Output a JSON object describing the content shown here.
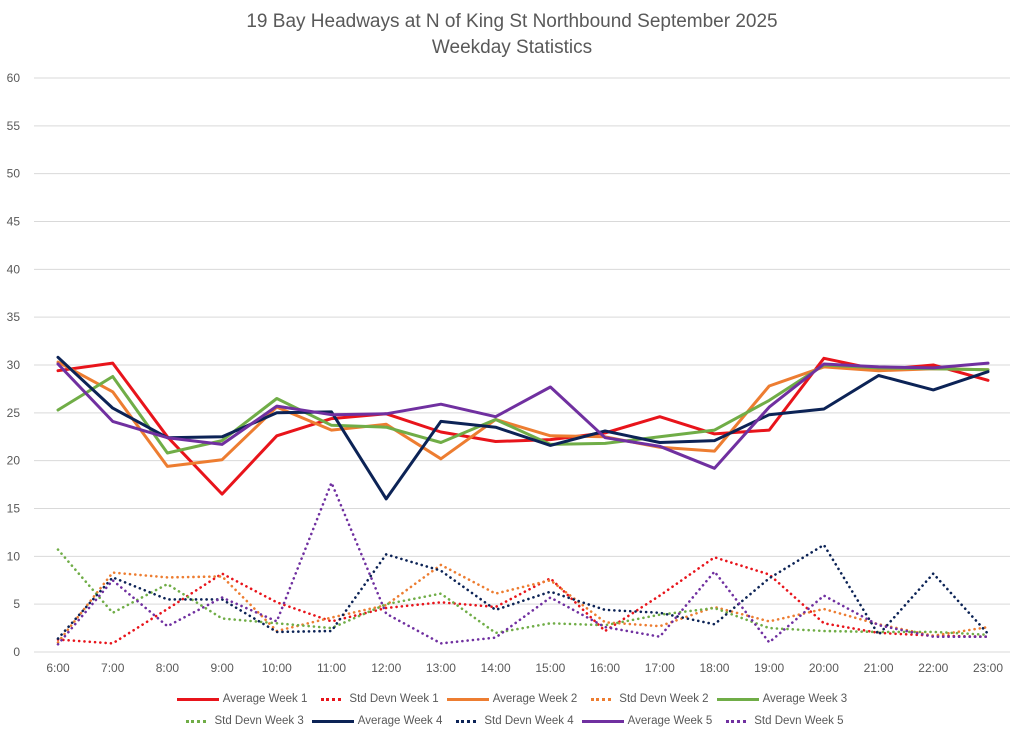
{
  "chart_data": {
    "type": "line",
    "title": "19 Bay Headways at N of King St Northbound September 2025",
    "subtitle": "Weekday Statistics",
    "xlabel": "",
    "ylabel": "",
    "ylim": [
      0,
      60
    ],
    "yticks": [
      "0",
      "5",
      "10",
      "15",
      "20",
      "25",
      "30",
      "35",
      "40",
      "45",
      "50",
      "55",
      "60"
    ],
    "ytick_values": [
      0,
      5,
      10,
      15,
      20,
      25,
      30,
      35,
      40,
      45,
      50,
      55,
      60
    ],
    "grid": true,
    "legend_position": "bottom",
    "categories": [
      "6:00",
      "7:00",
      "8:00",
      "9:00",
      "10:00",
      "11:00",
      "12:00",
      "13:00",
      "14:00",
      "15:00",
      "16:00",
      "17:00",
      "18:00",
      "19:00",
      "20:00",
      "21:00",
      "22:00",
      "23:00"
    ],
    "series": [
      {
        "name": "Average Week 1",
        "color": "#e8141b",
        "style": "solid",
        "values": [
          29.4,
          30.2,
          22.5,
          16.5,
          22.6,
          24.4,
          24.9,
          23.0,
          22.0,
          22.2,
          22.9,
          24.6,
          22.8,
          23.2,
          30.7,
          29.5,
          30.0,
          28.4
        ]
      },
      {
        "name": "Std Devn Week 1",
        "color": "#e8141b",
        "style": "dotted",
        "values": [
          1.3,
          0.9,
          4.5,
          8.2,
          5.2,
          3.2,
          4.6,
          5.2,
          4.7,
          7.7,
          2.2,
          5.9,
          9.9,
          8.1,
          3.0,
          2.0,
          1.7,
          1.6
        ]
      },
      {
        "name": "Average Week 2",
        "color": "#ed7d31",
        "style": "solid",
        "values": [
          30.3,
          27.2,
          19.4,
          20.1,
          25.6,
          23.2,
          23.8,
          20.2,
          24.3,
          22.6,
          22.5,
          21.4,
          21.0,
          27.8,
          29.8,
          29.4,
          29.6,
          29.5
        ]
      },
      {
        "name": "Std Devn Week 2",
        "color": "#ed7d31",
        "style": "dotted",
        "values": [
          1.0,
          8.3,
          7.8,
          7.9,
          2.2,
          3.6,
          4.9,
          9.1,
          6.1,
          7.5,
          3.1,
          2.7,
          4.7,
          3.2,
          4.5,
          2.9,
          1.7,
          2.6
        ]
      },
      {
        "name": "Average Week 3",
        "color": "#70ad47",
        "style": "solid",
        "values": [
          25.3,
          28.8,
          20.8,
          22.1,
          26.5,
          23.7,
          23.5,
          21.9,
          24.3,
          21.7,
          21.8,
          22.5,
          23.2,
          26.3,
          30.0,
          29.7,
          29.6,
          29.5
        ]
      },
      {
        "name": "Std Devn Week 3",
        "color": "#70ad47",
        "style": "dotted",
        "values": [
          10.7,
          4.1,
          7.1,
          3.5,
          3.0,
          2.5,
          5.0,
          6.1,
          2.0,
          3.0,
          2.8,
          3.9,
          4.6,
          2.5,
          2.2,
          2.1,
          2.1,
          1.8
        ]
      },
      {
        "name": "Average Week 4",
        "color": "#0c2356",
        "style": "solid",
        "values": [
          30.8,
          25.5,
          22.4,
          22.5,
          25.0,
          25.1,
          16.0,
          24.1,
          23.5,
          21.6,
          23.1,
          21.9,
          22.1,
          24.8,
          25.4,
          28.9,
          27.4,
          29.3
        ]
      },
      {
        "name": "Std Devn Week 4",
        "color": "#0c2356",
        "style": "dotted",
        "values": [
          1.4,
          7.8,
          5.5,
          5.5,
          2.1,
          2.2,
          10.2,
          8.5,
          4.4,
          6.3,
          4.4,
          4.1,
          2.9,
          7.7,
          11.2,
          1.8,
          8.2,
          1.9
        ]
      },
      {
        "name": "Average Week 5",
        "color": "#7030a0",
        "style": "solid",
        "values": [
          30.1,
          24.1,
          22.4,
          21.7,
          25.7,
          24.8,
          24.9,
          25.9,
          24.6,
          27.7,
          22.4,
          21.5,
          19.2,
          25.6,
          30.1,
          29.8,
          29.7,
          30.2
        ]
      },
      {
        "name": "Std Devn Week 5",
        "color": "#7030a0",
        "style": "dotted",
        "values": [
          0.8,
          7.5,
          2.7,
          5.7,
          3.2,
          17.7,
          4.0,
          0.9,
          1.5,
          5.7,
          2.6,
          1.6,
          8.4,
          1.0,
          5.9,
          2.8,
          1.6,
          1.6
        ]
      }
    ]
  }
}
